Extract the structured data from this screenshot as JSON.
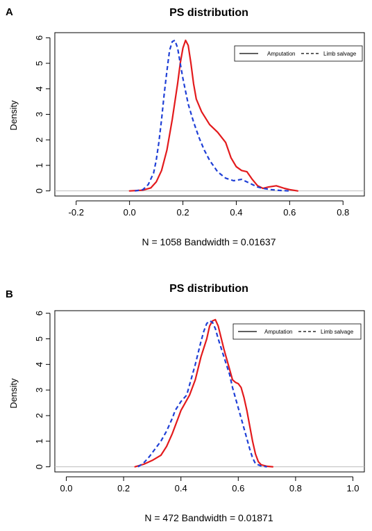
{
  "panels": [
    {
      "letter": "A",
      "chart_data": {
        "type": "line",
        "title": "PS distribution",
        "xlabel": "N = 1058   Bandwidth = 0.01637",
        "ylabel": "Density",
        "xlim": [
          -0.28,
          0.88
        ],
        "ylim": [
          -0.2,
          6.2
        ],
        "xticks": [
          -0.2,
          0.0,
          0.2,
          0.4,
          0.6,
          0.8
        ],
        "xtick_labels": [
          "-0.2",
          "0.0",
          "0.2",
          "0.4",
          "0.6",
          "0.8"
        ],
        "yticks": [
          0,
          1,
          2,
          3,
          4,
          5,
          6
        ],
        "ytick_labels": [
          "0",
          "1",
          "2",
          "3",
          "4",
          "5",
          "6"
        ],
        "grid": false,
        "legend_position": "top-right",
        "series": [
          {
            "name": "Amputation",
            "color": "#e31a1c",
            "style": "solid",
            "x": [
              0.0,
              0.05,
              0.08,
              0.1,
              0.12,
              0.14,
              0.16,
              0.18,
              0.19,
              0.2,
              0.21,
              0.22,
              0.23,
              0.24,
              0.25,
              0.27,
              0.3,
              0.33,
              0.36,
              0.38,
              0.4,
              0.42,
              0.44,
              0.46,
              0.48,
              0.5,
              0.52,
              0.55,
              0.58,
              0.6,
              0.63
            ],
            "y": [
              0.0,
              0.03,
              0.12,
              0.35,
              0.8,
              1.6,
              2.8,
              4.2,
              5.0,
              5.6,
              5.9,
              5.7,
              5.0,
              4.2,
              3.6,
              3.1,
              2.6,
              2.3,
              1.9,
              1.3,
              0.95,
              0.8,
              0.75,
              0.45,
              0.2,
              0.1,
              0.15,
              0.2,
              0.1,
              0.05,
              0.0
            ]
          },
          {
            "name": "Limb salvage",
            "color": "#1f3fd6",
            "style": "dashed",
            "x": [
              0.02,
              0.05,
              0.07,
              0.09,
              0.1,
              0.11,
              0.12,
              0.13,
              0.14,
              0.15,
              0.16,
              0.17,
              0.18,
              0.19,
              0.2,
              0.21,
              0.22,
              0.24,
              0.26,
              0.28,
              0.3,
              0.33,
              0.36,
              0.39,
              0.42,
              0.45,
              0.48,
              0.5,
              0.53,
              0.56,
              0.6
            ],
            "y": [
              0.0,
              0.05,
              0.25,
              0.7,
              1.2,
              1.9,
              2.8,
              3.8,
              4.7,
              5.5,
              5.85,
              5.9,
              5.6,
              5.0,
              4.4,
              3.9,
              3.4,
              2.7,
              2.1,
              1.6,
              1.2,
              0.75,
              0.5,
              0.4,
              0.45,
              0.3,
              0.15,
              0.1,
              0.05,
              0.02,
              0.0
            ]
          }
        ]
      }
    },
    {
      "letter": "B",
      "chart_data": {
        "type": "line",
        "title": "PS distribution",
        "xlabel": "N = 472   Bandwidth = 0.01871",
        "ylabel": "Density",
        "xlim": [
          -0.04,
          1.04
        ],
        "ylim": [
          -0.2,
          6.1
        ],
        "xticks": [
          0.0,
          0.2,
          0.4,
          0.6,
          0.8,
          1.0
        ],
        "xtick_labels": [
          "0.0",
          "0.2",
          "0.4",
          "0.6",
          "0.8",
          "1.0"
        ],
        "yticks": [
          0,
          1,
          2,
          3,
          4,
          5,
          6
        ],
        "ytick_labels": [
          "0",
          "1",
          "2",
          "3",
          "4",
          "5",
          "6"
        ],
        "grid": false,
        "legend_position": "top-right",
        "series": [
          {
            "name": "Amputation",
            "color": "#e31a1c",
            "style": "solid",
            "x": [
              0.24,
              0.27,
              0.3,
              0.33,
              0.35,
              0.37,
              0.39,
              0.4,
              0.41,
              0.43,
              0.45,
              0.47,
              0.49,
              0.5,
              0.51,
              0.52,
              0.53,
              0.55,
              0.57,
              0.58,
              0.59,
              0.6,
              0.61,
              0.62,
              0.63,
              0.64,
              0.65,
              0.66,
              0.67,
              0.68,
              0.7,
              0.72
            ],
            "y": [
              0.0,
              0.1,
              0.25,
              0.45,
              0.8,
              1.3,
              1.9,
              2.2,
              2.4,
              2.8,
              3.4,
              4.3,
              5.0,
              5.5,
              5.7,
              5.75,
              5.5,
              4.6,
              3.8,
              3.4,
              3.3,
              3.25,
              3.1,
              2.7,
              2.2,
              1.6,
              1.0,
              0.5,
              0.2,
              0.08,
              0.02,
              0.0
            ]
          },
          {
            "name": "Limb salvage",
            "color": "#1f3fd6",
            "style": "dashed",
            "x": [
              0.25,
              0.27,
              0.29,
              0.31,
              0.33,
              0.35,
              0.37,
              0.38,
              0.4,
              0.42,
              0.43,
              0.45,
              0.47,
              0.48,
              0.49,
              0.5,
              0.51,
              0.52,
              0.53,
              0.55,
              0.57,
              0.58,
              0.6,
              0.62,
              0.64,
              0.65,
              0.66,
              0.68,
              0.7
            ],
            "y": [
              0.0,
              0.15,
              0.4,
              0.7,
              1.0,
              1.4,
              1.9,
              2.2,
              2.55,
              2.8,
              3.2,
              4.0,
              4.9,
              5.3,
              5.6,
              5.7,
              5.65,
              5.4,
              5.0,
              4.3,
              3.6,
              3.1,
              2.3,
              1.5,
              0.7,
              0.35,
              0.12,
              0.03,
              0.0
            ]
          }
        ]
      }
    }
  ]
}
